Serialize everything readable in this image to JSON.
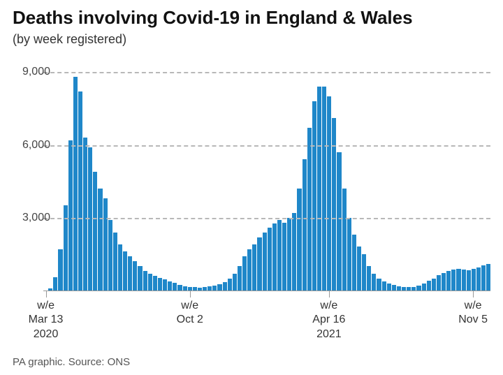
{
  "title": "Deaths involving Covid-19 in England & Wales",
  "subtitle": "(by week registered)",
  "footer": "PA graphic. Source: ONS",
  "chart": {
    "type": "bar",
    "bar_color": "#1f87c9",
    "background_color": "#ffffff",
    "grid_color": "#b8b8b8",
    "title_fontsize": 26,
    "label_fontsize": 16,
    "ylim": [
      0,
      9500
    ],
    "yticks": [
      3000,
      6000,
      9000
    ],
    "ytick_labels": [
      "3,000",
      "6,000",
      "9,000"
    ],
    "xticks": [
      {
        "index": 0,
        "line1": "w/e",
        "line2": "Mar 13",
        "year": "2020"
      },
      {
        "index": 29,
        "line1": "w/e",
        "line2": "Oct 2"
      },
      {
        "index": 57,
        "line1": "w/e",
        "line2": "Apr 16",
        "year": "2021"
      },
      {
        "index": 86,
        "line1": "w/e",
        "line2": "Nov 5"
      }
    ],
    "values": [
      5,
      100,
      550,
      1700,
      3500,
      6200,
      8800,
      8200,
      6300,
      5900,
      4900,
      4200,
      3800,
      2900,
      2400,
      1900,
      1600,
      1400,
      1200,
      1000,
      800,
      700,
      600,
      520,
      450,
      380,
      310,
      230,
      180,
      150,
      130,
      120,
      140,
      170,
      200,
      260,
      350,
      500,
      700,
      1000,
      1400,
      1700,
      1900,
      2200,
      2400,
      2600,
      2750,
      2900,
      2800,
      3000,
      3200,
      4200,
      5400,
      6700,
      7800,
      8400,
      8400,
      8000,
      7100,
      5700,
      4200,
      3000,
      2300,
      1800,
      1500,
      1000,
      700,
      500,
      380,
      300,
      220,
      180,
      150,
      130,
      150,
      200,
      300,
      400,
      500,
      620,
      720,
      800,
      860,
      900,
      860,
      830,
      880,
      950,
      1050,
      1100
    ]
  }
}
